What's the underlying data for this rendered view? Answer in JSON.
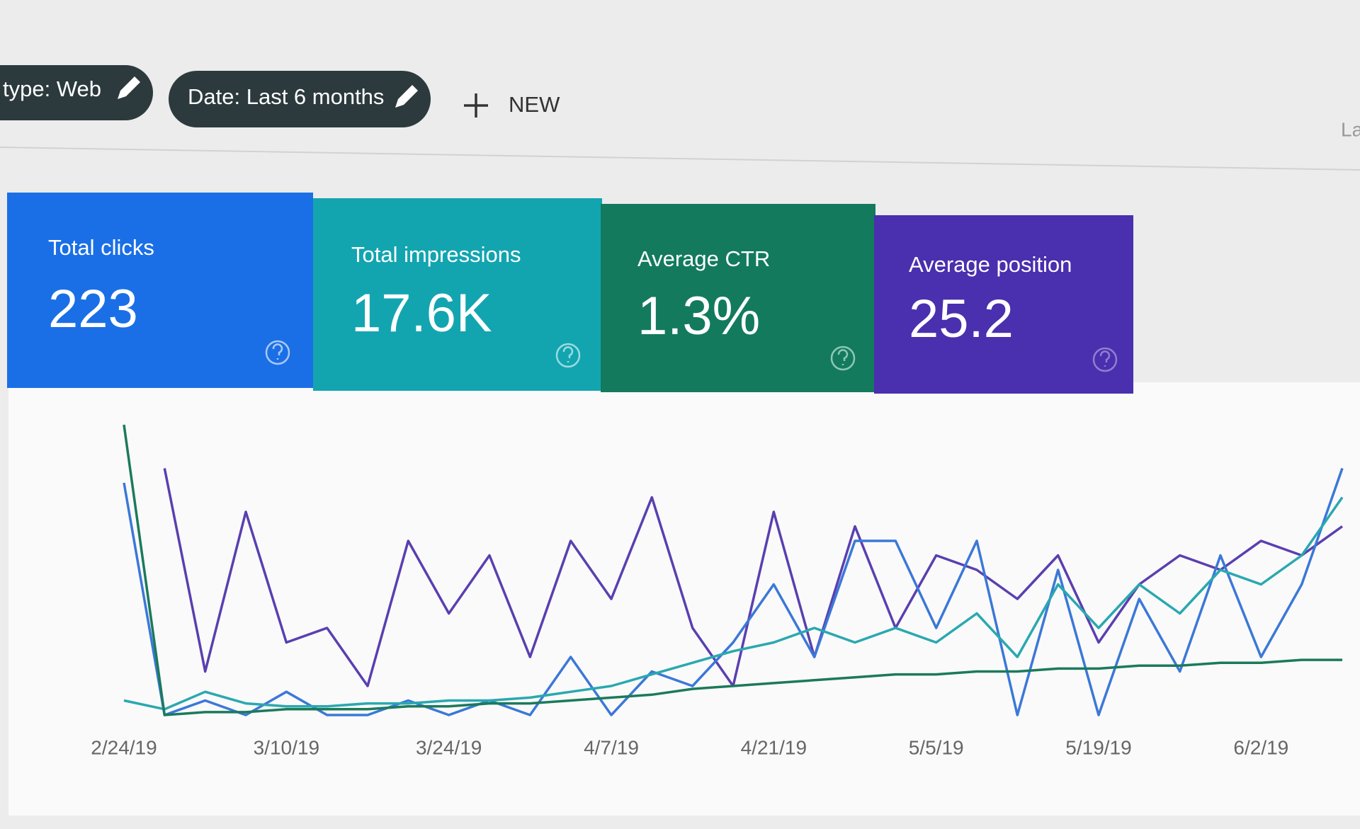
{
  "filters": [
    "type: Web",
    "Date: Last 6 months"
  ],
  "new_button": "NEW",
  "corner_text": "La",
  "cards": [
    {
      "label": "Total clicks",
      "value": "223"
    },
    {
      "label": "Total impressions",
      "value": "17.6K"
    },
    {
      "label": "Average CTR",
      "value": "1.3%"
    },
    {
      "label": "Average position",
      "value": "25.2"
    }
  ],
  "chart_data": {
    "type": "line",
    "categories": [
      "2/24/19",
      null,
      null,
      null,
      "3/10/19",
      null,
      null,
      null,
      "3/24/19",
      null,
      null,
      null,
      "4/7/19",
      null,
      null,
      null,
      "4/21/19",
      null,
      null,
      null,
      "5/5/19",
      null,
      null,
      null,
      "5/19/19",
      null,
      null,
      null,
      "6/2/19",
      null,
      null
    ],
    "ylim": [
      0,
      100
    ],
    "series": [
      {
        "color": "#5a3fb0",
        "values": [
          null,
          85,
          15,
          70,
          25,
          30,
          10,
          60,
          35,
          55,
          20,
          60,
          40,
          75,
          30,
          10,
          70,
          20,
          65,
          30,
          55,
          50,
          40,
          55,
          25,
          45,
          55,
          50,
          60,
          55,
          65
        ]
      },
      {
        "color": "#3b78d8",
        "values": [
          80,
          0,
          5,
          0,
          8,
          0,
          0,
          5,
          0,
          5,
          0,
          20,
          0,
          15,
          10,
          25,
          45,
          20,
          60,
          60,
          30,
          60,
          0,
          50,
          0,
          40,
          15,
          55,
          20,
          45,
          85
        ]
      },
      {
        "color": "#2aa8b0",
        "values": [
          5,
          2,
          8,
          4,
          3,
          3,
          4,
          4,
          5,
          5,
          6,
          8,
          10,
          14,
          18,
          22,
          25,
          30,
          25,
          30,
          25,
          35,
          20,
          45,
          30,
          45,
          35,
          50,
          45,
          55,
          75
        ]
      },
      {
        "color": "#1b7a5a",
        "values": [
          100,
          0,
          1,
          1,
          2,
          2,
          2,
          3,
          3,
          4,
          4,
          5,
          6,
          7,
          9,
          10,
          11,
          12,
          13,
          14,
          14,
          15,
          15,
          16,
          16,
          17,
          17,
          18,
          18,
          19,
          19
        ]
      }
    ]
  }
}
